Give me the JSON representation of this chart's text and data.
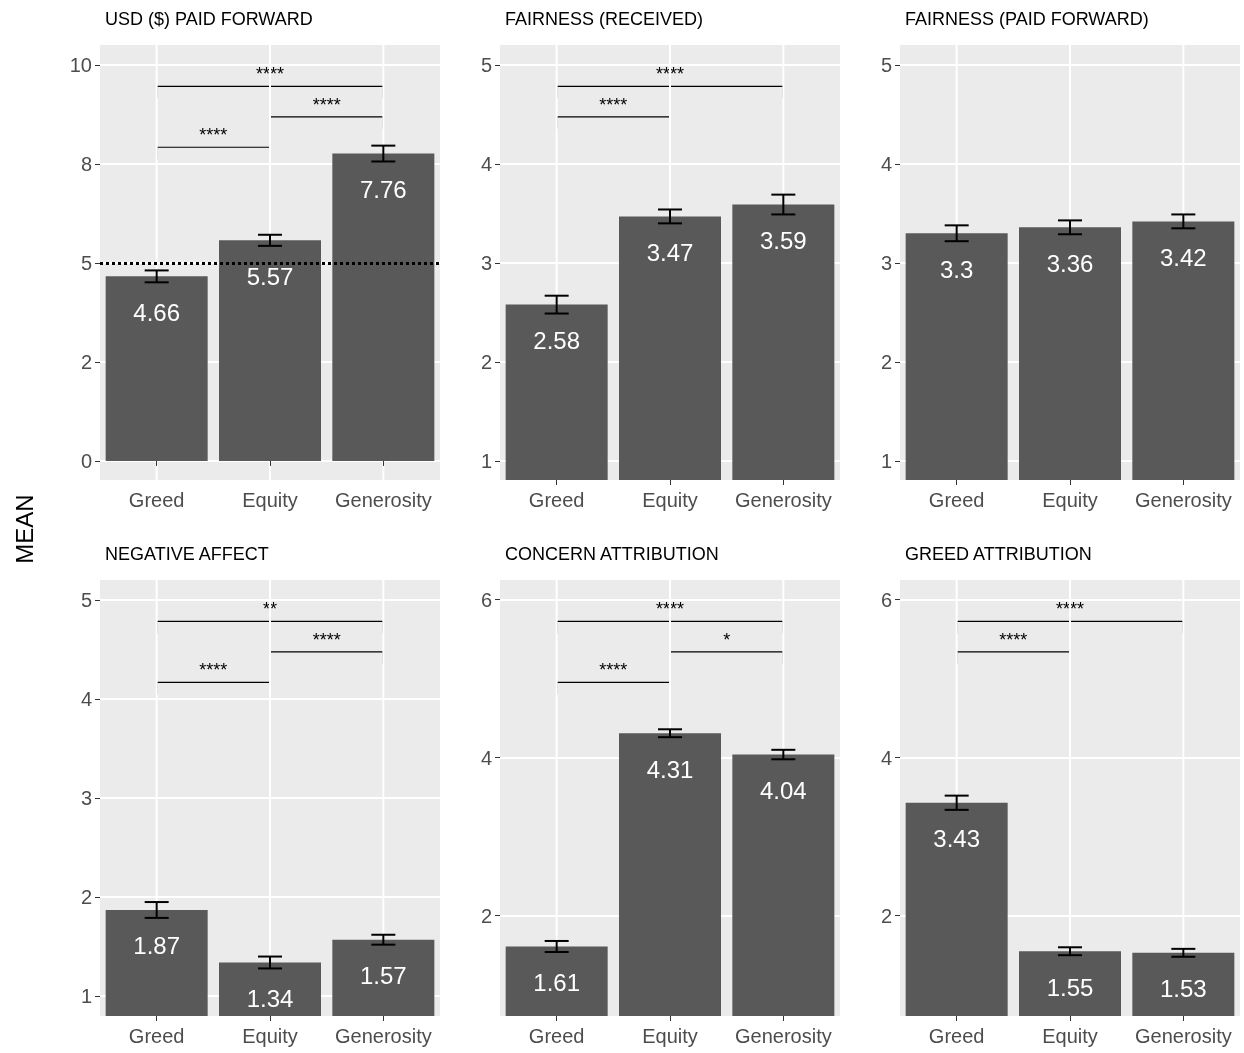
{
  "chart_data": [
    {
      "type": "bar",
      "title": "USD ($) PAID FORWARD",
      "ylabel": "MEAN",
      "categories": [
        "Greed",
        "Equity",
        "Generosity"
      ],
      "values": [
        4.66,
        5.57,
        7.76
      ],
      "errors": [
        0.15,
        0.14,
        0.2
      ],
      "color": "#595959",
      "ylim": [
        -0.48,
        10.5
      ],
      "yticks": [
        0,
        {
          "value": 2.5,
          "label": "2"
        },
        5,
        {
          "value": 7.5,
          "label": "8"
        },
        10
      ],
      "grid": true,
      "data_labels": true,
      "ref_lines": [
        {
          "axis": "y",
          "value": 5,
          "line_style": "dotted",
          "color": "#000000"
        }
      ],
      "annotations": [
        "****",
        "****",
        "****"
      ]
    },
    {
      "type": "bar",
      "title": "FAIRNESS (RECEIVED)",
      "categories": [
        "Greed",
        "Equity",
        "Generosity"
      ],
      "values": [
        2.58,
        3.47,
        3.59
      ],
      "errors": [
        0.09,
        0.07,
        0.1
      ],
      "color": "#595959",
      "ylim": [
        0.81,
        5.2
      ],
      "yticks": [
        1,
        2,
        3,
        4,
        5
      ],
      "grid": true,
      "data_labels": true,
      "annotations": [
        "****",
        "****"
      ]
    },
    {
      "type": "bar",
      "title": "FAIRNESS (PAID FORWARD)",
      "categories": [
        "Greed",
        "Equity",
        "Generosity"
      ],
      "values": [
        3.3,
        3.36,
        3.42
      ],
      "errors": [
        0.08,
        0.07,
        0.07
      ],
      "color": "#595959",
      "ylim": [
        0.81,
        5.2
      ],
      "yticks": [
        1,
        2,
        3,
        4,
        5
      ],
      "grid": true,
      "data_labels": true
    },
    {
      "type": "bar",
      "title": "NEGATIVE AFFECT",
      "categories": [
        "Greed",
        "Equity",
        "Generosity"
      ],
      "values": [
        1.87,
        1.34,
        1.57
      ],
      "errors": [
        0.08,
        0.06,
        0.05
      ],
      "color": "#595959",
      "ylim": [
        0.8,
        5.2
      ],
      "yticks": [
        1,
        2,
        3,
        4,
        5
      ],
      "grid": true,
      "data_labels": true,
      "annotations": [
        "**",
        "****",
        "****"
      ]
    },
    {
      "type": "bar",
      "title": "CONCERN ATTRIBUTION",
      "categories": [
        "Greed",
        "Equity",
        "Generosity"
      ],
      "values": [
        1.61,
        4.31,
        4.04
      ],
      "errors": [
        0.07,
        0.05,
        0.06
      ],
      "color": "#595959",
      "ylim": [
        0.73,
        6.25
      ],
      "yticks": [
        2,
        4,
        6
      ],
      "grid": true,
      "data_labels": true,
      "annotations": [
        "****",
        "*",
        "****"
      ]
    },
    {
      "type": "bar",
      "title": "GREED ATTRIBUTION",
      "categories": [
        "Greed",
        "Equity",
        "Generosity"
      ],
      "values": [
        3.43,
        1.55,
        1.53
      ],
      "errors": [
        0.09,
        0.05,
        0.05
      ],
      "color": "#595959",
      "ylim": [
        0.73,
        6.25
      ],
      "yticks": [
        2,
        4,
        6
      ],
      "grid": true,
      "data_labels": true,
      "annotations": [
        "****",
        "****"
      ]
    }
  ]
}
